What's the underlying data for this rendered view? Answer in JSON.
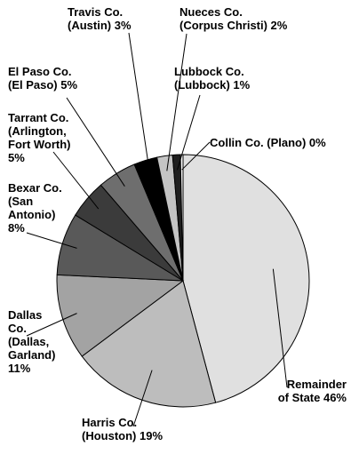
{
  "chart_data": {
    "type": "pie",
    "title": "",
    "slices": [
      {
        "name": "Remainder of State",
        "value": 46,
        "label_lines": [
          "Remainder",
          "of State 46%"
        ],
        "color": "#e0e0e0"
      },
      {
        "name": "Harris Co. (Houston)",
        "value": 19,
        "label_lines": [
          "Harris Co.",
          "(Houston) 19%"
        ],
        "color": "#bdbdbd"
      },
      {
        "name": "Dallas Co. (Dallas, Garland)",
        "value": 11,
        "label_lines": [
          "Dallas",
          "Co.",
          "(Dallas,",
          "Garland)",
          "11%"
        ],
        "color": "#a3a3a3"
      },
      {
        "name": "Bexar Co. (San Antonio)",
        "value": 8,
        "label_lines": [
          "Bexar Co.",
          "(San",
          "Antonio)",
          "8%"
        ],
        "color": "#595959"
      },
      {
        "name": "Tarrant Co. (Arlington, Fort Worth)",
        "value": 5,
        "label_lines": [
          "Tarrant Co.",
          "(Arlington,",
          "Fort Worth)",
          "5%"
        ],
        "color": "#3b3b3b"
      },
      {
        "name": "El Paso Co. (El Paso)",
        "value": 5,
        "label_lines": [
          "El Paso Co.",
          "(El Paso) 5%"
        ],
        "color": "#6e6e6e"
      },
      {
        "name": "Travis Co. (Austin)",
        "value": 3,
        "label_lines": [
          "Travis Co.",
          "(Austin) 3%"
        ],
        "color": "#000000"
      },
      {
        "name": "Nueces Co. (Corpus Christi)",
        "value": 2,
        "label_lines": [
          "Nueces Co.",
          "(Corpus Christi) 2%"
        ],
        "color": "#c4c4c4"
      },
      {
        "name": "Lubbock Co. (Lubbock)",
        "value": 1,
        "label_lines": [
          "Lubbock Co.",
          "(Lubbock) 1%"
        ],
        "color": "#1f1f1f"
      },
      {
        "name": "Collin Co. (Plano)",
        "value": 0,
        "label_lines": [
          "Collin Co. (Plano) 0%"
        ],
        "color": "#ffffff"
      }
    ]
  }
}
